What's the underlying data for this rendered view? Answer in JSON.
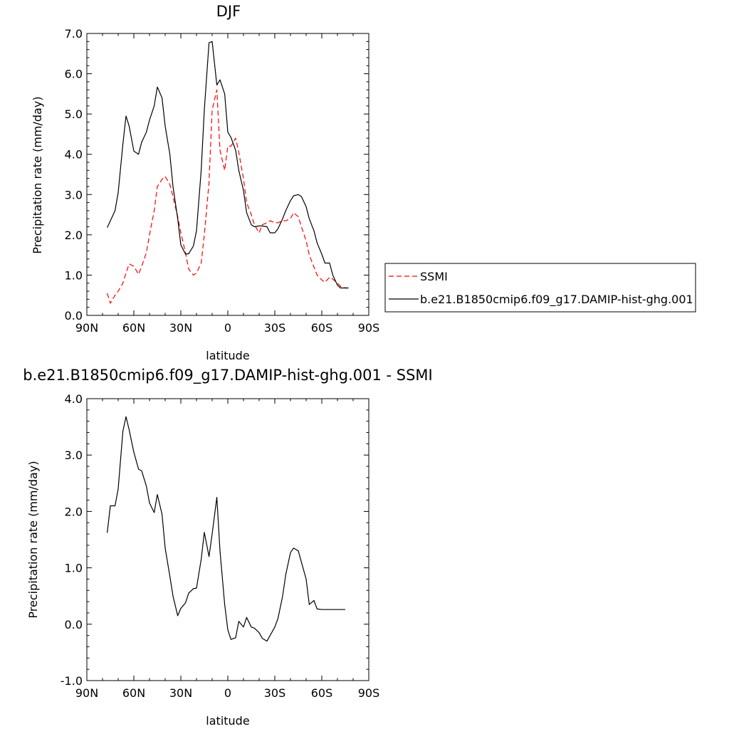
{
  "chart_data": [
    {
      "type": "line",
      "title": "DJF",
      "xlabel": "latitude",
      "ylabel": "Precipitation rate (mm/day)",
      "xlim": [
        90,
        -90
      ],
      "ylim": [
        0,
        7
      ],
      "x_ticks": [
        90,
        60,
        30,
        0,
        -30,
        -60,
        -90
      ],
      "x_tick_labels": [
        "90N",
        "60N",
        "30N",
        "0",
        "30S",
        "60S",
        "90S"
      ],
      "y_ticks": [
        0,
        1,
        2,
        3,
        4,
        5,
        6,
        7
      ],
      "y_tick_labels": [
        "0.0",
        "1.0",
        "2.0",
        "3.0",
        "4.0",
        "5.0",
        "6.0",
        "7.0"
      ],
      "grid": false,
      "legend_position": "right-outside",
      "series": [
        {
          "name": "SSMI",
          "color": "#ff0000",
          "dash": "dashed",
          "x": [
            77,
            75,
            72,
            70,
            67,
            65,
            63,
            60,
            57,
            55,
            52,
            50,
            47,
            45,
            42,
            40,
            37,
            35,
            32,
            30,
            27,
            25,
            22,
            20,
            17,
            15,
            12,
            10,
            7,
            5,
            2,
            0,
            -2,
            -5,
            -7,
            -10,
            -12,
            -15,
            -17,
            -20,
            -22,
            -25,
            -27,
            -30,
            -32,
            -35,
            -37,
            -40,
            -42,
            -45,
            -47,
            -50,
            -52,
            -55,
            -57,
            -60,
            -62,
            -65,
            -67,
            -70,
            -72,
            -75,
            -77
          ],
          "y": [
            0.55,
            0.3,
            0.5,
            0.6,
            0.8,
            1.05,
            1.28,
            1.22,
            1.02,
            1.22,
            1.55,
            2.0,
            2.6,
            3.2,
            3.38,
            3.45,
            3.25,
            2.95,
            2.45,
            2.05,
            1.55,
            1.15,
            1.0,
            1.05,
            1.3,
            2.0,
            3.3,
            5.1,
            5.6,
            4.1,
            3.6,
            4.2,
            4.2,
            4.4,
            4.05,
            3.4,
            2.8,
            2.5,
            2.25,
            2.05,
            2.25,
            2.3,
            2.35,
            2.3,
            2.3,
            2.35,
            2.35,
            2.4,
            2.55,
            2.45,
            2.2,
            1.85,
            1.5,
            1.2,
            1.0,
            0.88,
            0.82,
            0.95,
            0.9,
            0.8,
            0.72,
            0.68,
            0.68
          ]
        },
        {
          "name": "b.e21.B1850cmip6.f09_g17.DAMIP-hist-ghg.001",
          "color": "#000000",
          "dash": "solid",
          "x": [
            77,
            72,
            70,
            67,
            65,
            63,
            60,
            57,
            55,
            52,
            50,
            47,
            45,
            42,
            40,
            37,
            35,
            32,
            30,
            27,
            25,
            22,
            20,
            17,
            15,
            12,
            10,
            7,
            5,
            2,
            0,
            -2,
            -5,
            -7,
            -10,
            -12,
            -15,
            -17,
            -20,
            -22,
            -25,
            -27,
            -30,
            -32,
            -35,
            -37,
            -40,
            -42,
            -45,
            -47,
            -50,
            -52,
            -55,
            -57,
            -60,
            -62,
            -65,
            -67,
            -70,
            -72,
            -75,
            -77
          ],
          "y": [
            2.18,
            2.6,
            3.05,
            4.25,
            4.95,
            4.7,
            4.08,
            4.0,
            4.3,
            4.55,
            4.85,
            5.2,
            5.67,
            5.4,
            4.7,
            4.0,
            3.2,
            2.4,
            1.75,
            1.52,
            1.53,
            1.72,
            2.1,
            3.6,
            5.1,
            6.77,
            6.8,
            5.72,
            5.85,
            5.5,
            4.55,
            4.42,
            4.1,
            3.6,
            3.1,
            2.55,
            2.25,
            2.2,
            2.22,
            2.22,
            2.2,
            2.05,
            2.05,
            2.15,
            2.4,
            2.6,
            2.85,
            2.97,
            3.0,
            2.95,
            2.7,
            2.4,
            2.1,
            1.8,
            1.52,
            1.3,
            1.3,
            1.0,
            0.75,
            0.68,
            0.68,
            0.68
          ]
        }
      ]
    },
    {
      "type": "line",
      "title": "b.e21.B1850cmip6.f09_g17.DAMIP-hist-ghg.001 - SSMI",
      "xlabel": "latitude",
      "ylabel": "Precipitation rate (mm/day)",
      "xlim": [
        90,
        -90
      ],
      "ylim": [
        -1,
        4
      ],
      "x_ticks": [
        90,
        60,
        30,
        0,
        -30,
        -60,
        -90
      ],
      "x_tick_labels": [
        "90N",
        "60N",
        "30N",
        "0",
        "30S",
        "60S",
        "90S"
      ],
      "y_ticks": [
        -1,
        0,
        1,
        2,
        3,
        4
      ],
      "y_tick_labels": [
        "-1.0",
        "0.0",
        "1.0",
        "2.0",
        "3.0",
        "4.0"
      ],
      "grid": false,
      "series": [
        {
          "color": "#000000",
          "dash": "solid",
          "x": [
            77,
            75,
            72,
            70,
            67,
            65,
            63,
            60,
            57,
            55,
            52,
            50,
            47,
            45,
            42,
            40,
            37,
            35,
            32,
            30,
            27,
            25,
            22,
            20,
            17,
            15,
            12,
            10,
            7,
            5,
            2,
            0,
            -2,
            -5,
            -7,
            -10,
            -12,
            -15,
            -17,
            -20,
            -22,
            -25,
            -27,
            -30,
            -32,
            -35,
            -37,
            -40,
            -42,
            -45,
            -47,
            -50,
            -52,
            -55,
            -57,
            -60,
            -62,
            -65,
            -67,
            -70,
            -72,
            -75
          ],
          "y": [
            1.62,
            2.1,
            2.1,
            2.4,
            3.42,
            3.68,
            3.45,
            3.05,
            2.75,
            2.72,
            2.45,
            2.15,
            1.98,
            2.3,
            1.95,
            1.35,
            0.85,
            0.5,
            0.15,
            0.28,
            0.38,
            0.55,
            0.63,
            0.64,
            1.15,
            1.63,
            1.2,
            1.6,
            2.25,
            1.3,
            0.35,
            -0.1,
            -0.27,
            -0.24,
            0.05,
            -0.05,
            0.12,
            -0.05,
            -0.07,
            -0.15,
            -0.25,
            -0.3,
            -0.2,
            -0.05,
            0.1,
            0.5,
            0.88,
            1.27,
            1.35,
            1.3,
            1.1,
            0.8,
            0.35,
            0.42,
            0.27,
            0.26,
            0.26,
            0.26,
            0.26,
            0.26,
            0.26,
            0.26
          ]
        }
      ]
    }
  ]
}
